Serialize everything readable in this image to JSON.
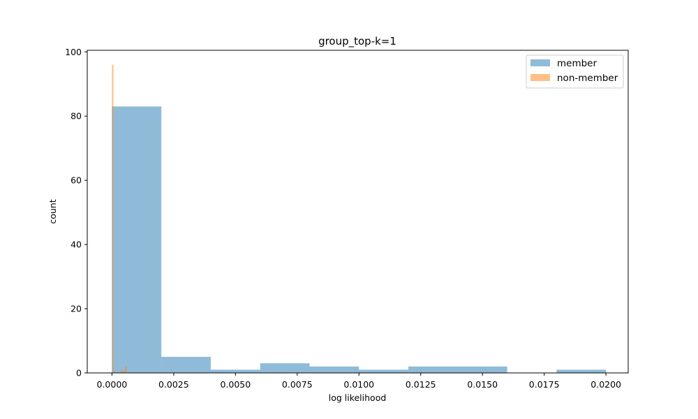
{
  "chart_data": {
    "type": "bar",
    "title": "group_top-k=1",
    "xlabel": "log likelihood",
    "ylabel": "count",
    "xlim": [
      -0.001,
      0.0209
    ],
    "ylim": [
      0,
      100.5
    ],
    "xticks": [
      0.0,
      0.0025,
      0.005,
      0.0075,
      0.01,
      0.0125,
      0.015,
      0.0175,
      0.02
    ],
    "xtick_labels": [
      "0.0000",
      "0.0025",
      "0.0050",
      "0.0075",
      "0.0100",
      "0.0125",
      "0.0150",
      "0.0175",
      "0.0200"
    ],
    "yticks": [
      0,
      20,
      40,
      60,
      80,
      100
    ],
    "ytick_labels": [
      "0",
      "20",
      "40",
      "60",
      "80",
      "100"
    ],
    "grid": false,
    "legend_position": "top-right",
    "series": [
      {
        "name": "member",
        "color": "#1f77b4",
        "alpha": 0.5,
        "bins": [
          {
            "x0": 0.0,
            "x1": 0.002,
            "count": 83
          },
          {
            "x0": 0.002,
            "x1": 0.004,
            "count": 5
          },
          {
            "x0": 0.004,
            "x1": 0.006,
            "count": 1
          },
          {
            "x0": 0.006,
            "x1": 0.008,
            "count": 3
          },
          {
            "x0": 0.008,
            "x1": 0.01,
            "count": 2
          },
          {
            "x0": 0.01,
            "x1": 0.012,
            "count": 1
          },
          {
            "x0": 0.012,
            "x1": 0.014,
            "count": 2
          },
          {
            "x0": 0.014,
            "x1": 0.016,
            "count": 2
          },
          {
            "x0": 0.016,
            "x1": 0.018,
            "count": 0
          },
          {
            "x0": 0.018,
            "x1": 0.02,
            "count": 1
          }
        ]
      },
      {
        "name": "non-member",
        "color": "#ff7f0e",
        "alpha": 0.5,
        "bins": [
          {
            "x0": 0.0,
            "x1": 6e-05,
            "count": 96
          },
          {
            "x0": 6e-05,
            "x1": 0.00012,
            "count": 0
          },
          {
            "x0": 0.00012,
            "x1": 0.00018,
            "count": 0
          },
          {
            "x0": 0.00018,
            "x1": 0.00024,
            "count": 0
          },
          {
            "x0": 0.00024,
            "x1": 0.0003,
            "count": 0
          },
          {
            "x0": 0.0003,
            "x1": 0.00036,
            "count": 0
          },
          {
            "x0": 0.00036,
            "x1": 0.00042,
            "count": 1
          },
          {
            "x0": 0.00042,
            "x1": 0.00048,
            "count": 0
          },
          {
            "x0": 0.00048,
            "x1": 0.00054,
            "count": 1
          },
          {
            "x0": 0.00054,
            "x1": 0.0006,
            "count": 2
          }
        ]
      }
    ]
  }
}
